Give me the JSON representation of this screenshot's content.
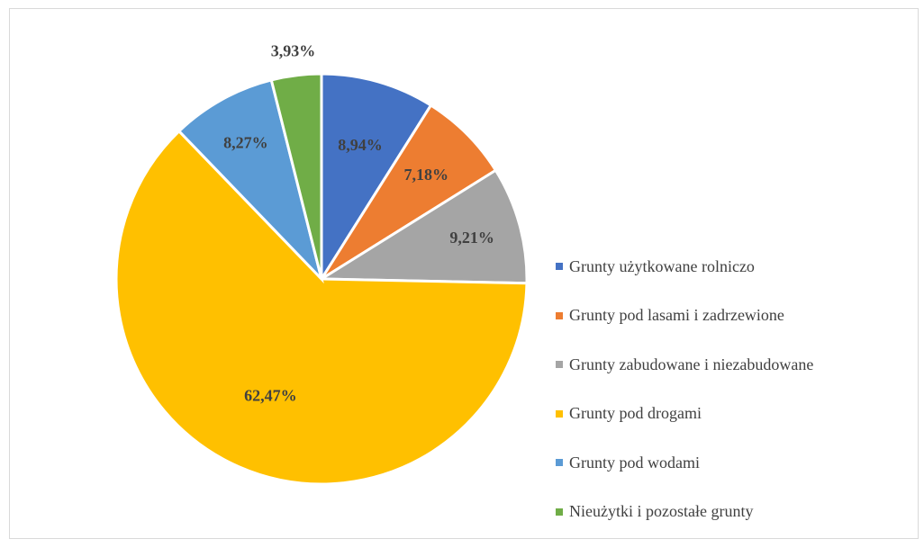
{
  "chart_data": {
    "type": "pie",
    "start_angle_deg": 0,
    "direction": "clockwise",
    "legend_position": "right",
    "slices": [
      {
        "label": "Grunty użytkowane rolniczo",
        "value": 8.94,
        "value_label": "8,94%",
        "color": "#4472C4"
      },
      {
        "label": "Grunty pod lasami i zadrzewione",
        "value": 7.18,
        "value_label": "7,18%",
        "color": "#ED7D31"
      },
      {
        "label": "Grunty zabudowane i niezabudowane",
        "value": 9.21,
        "value_label": "9,21%",
        "color": "#A5A5A5"
      },
      {
        "label": "Grunty pod drogami",
        "value": 62.47,
        "value_label": "62,47%",
        "color": "#FFC000"
      },
      {
        "label": "Grunty pod wodami",
        "value": 8.27,
        "value_label": "8,27%",
        "color": "#5B9BD5"
      },
      {
        "label": "Nieużytki i pozostałe grunty",
        "value": 3.93,
        "value_label": "3,93%",
        "color": "#70AD47"
      }
    ]
  }
}
